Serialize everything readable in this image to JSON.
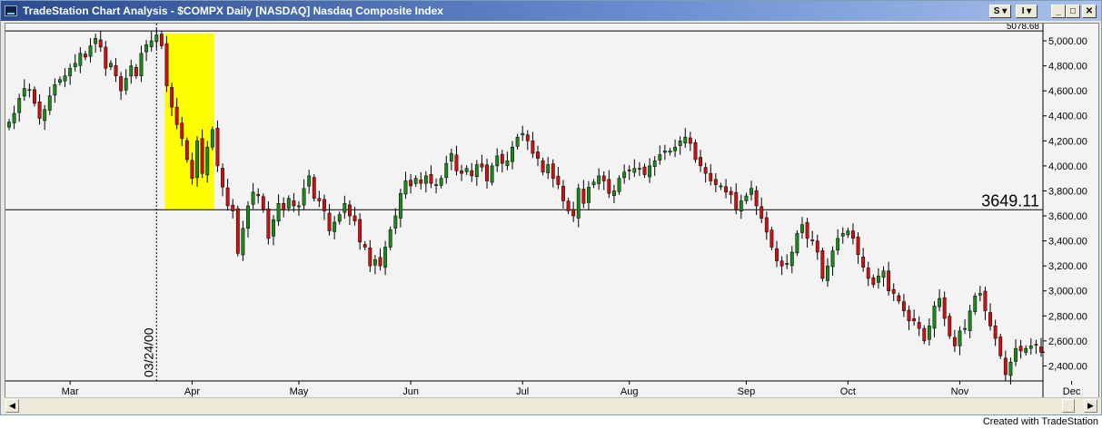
{
  "window": {
    "title": "TradeStation Chart Analysis - $COMPX Daily [NASDAQ] Nasdaq Composite Index",
    "buttons": {
      "s_label": "S ▾",
      "i_label": "I ▾",
      "minimize": "_",
      "maximize": "□",
      "close": "✕"
    }
  },
  "credit": "Created with TradeStation",
  "colors": {
    "up": "#1a8a1a",
    "down": "#d01010",
    "highlight": "#ffff00",
    "background": "#f3f3f3"
  },
  "chart_data": {
    "type": "candlestick",
    "symbol": "$COMPX",
    "ylim": [
      2280,
      5080
    ],
    "y_ticks": [
      2400,
      2600,
      2800,
      3000,
      3200,
      3400,
      3600,
      3800,
      4000,
      4200,
      4400,
      4600,
      4800,
      5000
    ],
    "y_tick_labels": [
      "2,400.00",
      "2,600.00",
      "2,800.00",
      "3,000.00",
      "3,200.00",
      "3,400.00",
      "3,600.00",
      "3,800.00",
      "4,000.00",
      "4,200.00",
      "4,400.00",
      "4,600.00",
      "4,800.00",
      "5,000.00"
    ],
    "top_partial_label": "5078.68",
    "top_level": 5078.68,
    "x_months": [
      {
        "label": "Mar",
        "bar": 12
      },
      {
        "label": "Apr",
        "bar": 36
      },
      {
        "label": "May",
        "bar": 57
      },
      {
        "label": "Jun",
        "bar": 79
      },
      {
        "label": "Jul",
        "bar": 101
      },
      {
        "label": "Aug",
        "bar": 122
      },
      {
        "label": "Sep",
        "bar": 145
      },
      {
        "label": "Oct",
        "bar": 165
      },
      {
        "label": "Nov",
        "bar": 187
      },
      {
        "label": "Dec",
        "bar": 209
      }
    ],
    "marker_date": "03/24/00",
    "marker_bar": 29,
    "highlight_range": {
      "start_bar": 31,
      "end_bar": 40,
      "high": 5060,
      "low": 3649.11
    },
    "horizontal_line": {
      "value": 3649.11,
      "label": "3649.11"
    },
    "closes": [
      4350,
      4420,
      4540,
      4620,
      4610,
      4500,
      4380,
      4450,
      4560,
      4650,
      4690,
      4720,
      4780,
      4820,
      4900,
      4870,
      4960,
      5020,
      4950,
      4780,
      4820,
      4720,
      4600,
      4700,
      4800,
      4720,
      4900,
      4970,
      5000,
      5048,
      4960,
      4640,
      4470,
      4330,
      4220,
      4050,
      3900,
      4200,
      3940,
      4150,
      4290,
      4000,
      3830,
      3680,
      3640,
      3300,
      3500,
      3680,
      3790,
      3760,
      3650,
      3420,
      3570,
      3700,
      3650,
      3740,
      3680,
      3680,
      3820,
      3920,
      3740,
      3720,
      3640,
      3480,
      3550,
      3610,
      3700,
      3600,
      3560,
      3390,
      3350,
      3200,
      3250,
      3200,
      3350,
      3490,
      3600,
      3780,
      3880,
      3840,
      3900,
      3860,
      3920,
      3860,
      3850,
      3900,
      4020,
      4100,
      3960,
      3940,
      3980,
      3920,
      4010,
      3990,
      3880,
      4000,
      4080,
      4020,
      4040,
      4150,
      4230,
      4260,
      4200,
      4100,
      4060,
      3950,
      4010,
      3900,
      3850,
      3720,
      3640,
      3600,
      3820,
      3700,
      3830,
      3870,
      3920,
      3880,
      3780,
      3800,
      3900,
      3950,
      3960,
      3980,
      3980,
      3930,
      4000,
      4040,
      4090,
      4120,
      4120,
      4150,
      4200,
      4230,
      4180,
      4050,
      4000,
      3940,
      3880,
      3850,
      3840,
      3790,
      3770,
      3650,
      3720,
      3760,
      3820,
      3680,
      3580,
      3470,
      3350,
      3240,
      3200,
      3220,
      3310,
      3460,
      3530,
      3420,
      3400,
      3310,
      3100,
      3200,
      3320,
      3420,
      3460,
      3480,
      3420,
      3290,
      3190,
      3100,
      3050,
      3120,
      3160,
      3000,
      2980,
      2920,
      2840,
      2760,
      2760,
      2700,
      2600,
      2720,
      2880,
      2940,
      2780,
      2640,
      2560,
      2680,
      2700,
      2840,
      2960,
      2980,
      2840,
      2720,
      2620,
      2480,
      2330,
      2430,
      2540,
      2520,
      2540,
      2560,
      2570,
      2510
    ],
    "last_price": 2510
  }
}
